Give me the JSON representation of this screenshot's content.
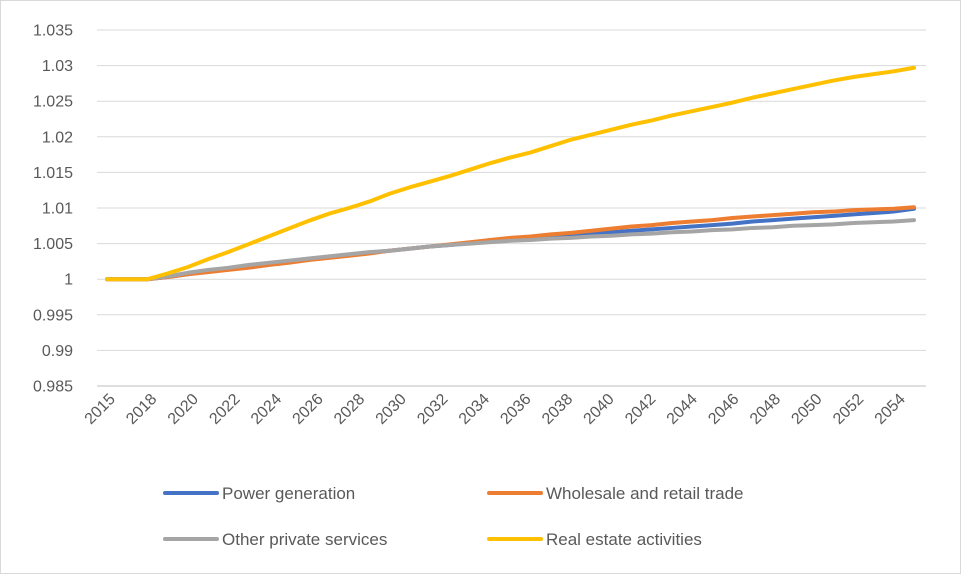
{
  "chart_data": {
    "type": "line",
    "title": "",
    "xlabel": "",
    "ylabel": "",
    "ylim": [
      0.985,
      1.035
    ],
    "yticks": [
      "0.985",
      "0.99",
      "0.995",
      "1",
      "1.005",
      "1.01",
      "1.015",
      "1.02",
      "1.025",
      "1.03",
      "1.035"
    ],
    "xlim": [
      2015,
      2055
    ],
    "xticks": [
      "2015",
      "2018",
      "2020",
      "2022",
      "2024",
      "2026",
      "2028",
      "2030",
      "2032",
      "2034",
      "2036",
      "2038",
      "2040",
      "2042",
      "2044",
      "2046",
      "2048",
      "2050",
      "2052",
      "2054"
    ],
    "grid": "horizontal",
    "legend_position": "bottom",
    "x": [
      2015,
      2016,
      2017,
      2018,
      2019,
      2020,
      2021,
      2022,
      2023,
      2024,
      2025,
      2026,
      2027,
      2028,
      2029,
      2030,
      2031,
      2032,
      2033,
      2034,
      2035,
      2036,
      2037,
      2038,
      2039,
      2040,
      2041,
      2042,
      2043,
      2044,
      2045,
      2046,
      2047,
      2048,
      2049,
      2050,
      2051,
      2052,
      2053,
      2054,
      2055
    ],
    "series": [
      {
        "name": "Power generation",
        "color": "#4472c4",
        "values": [
          1.0,
          1.0,
          1.0,
          1.0003,
          1.0007,
          1.0011,
          1.0014,
          1.0018,
          1.0021,
          1.0024,
          1.0028,
          1.0031,
          1.0034,
          1.0037,
          1.004,
          1.0043,
          1.0046,
          1.0048,
          1.0051,
          1.0054,
          1.0056,
          1.0058,
          1.006,
          1.0062,
          1.0064,
          1.0066,
          1.0068,
          1.007,
          1.0072,
          1.0074,
          1.0076,
          1.0078,
          1.0081,
          1.0083,
          1.0085,
          1.0087,
          1.0089,
          1.0091,
          1.0093,
          1.0095,
          1.0099
        ]
      },
      {
        "name": "Wholesale and retail trade",
        "color": "#ed7d31",
        "values": [
          1.0,
          1.0,
          1.0,
          1.0003,
          1.0007,
          1.001,
          1.0013,
          1.0016,
          1.002,
          1.0023,
          1.0027,
          1.003,
          1.0033,
          1.0036,
          1.004,
          1.0043,
          1.0046,
          1.0049,
          1.0052,
          1.0055,
          1.0058,
          1.006,
          1.0063,
          1.0065,
          1.0068,
          1.0071,
          1.0074,
          1.0076,
          1.0079,
          1.0081,
          1.0083,
          1.0086,
          1.0088,
          1.009,
          1.0092,
          1.0094,
          1.0095,
          1.0097,
          1.0098,
          1.0099,
          1.0101
        ]
      },
      {
        "name": "Other private services",
        "color": "#a5a5a5",
        "values": [
          1.0,
          1.0,
          1.0,
          1.0004,
          1.0009,
          1.0013,
          1.0016,
          1.002,
          1.0023,
          1.0026,
          1.0029,
          1.0032,
          1.0035,
          1.0038,
          1.004,
          1.0043,
          1.0046,
          1.0048,
          1.005,
          1.0052,
          1.0054,
          1.0055,
          1.0057,
          1.0058,
          1.006,
          1.0061,
          1.0063,
          1.0064,
          1.0066,
          1.0067,
          1.0069,
          1.007,
          1.0072,
          1.0073,
          1.0075,
          1.0076,
          1.0077,
          1.0079,
          1.008,
          1.0081,
          1.0083
        ]
      },
      {
        "name": "Real estate activities",
        "color": "#ffc000",
        "values": [
          1.0,
          1.0,
          1.0,
          1.0008,
          1.0017,
          1.0028,
          1.0038,
          1.0049,
          1.006,
          1.0071,
          1.0082,
          1.0092,
          1.01,
          1.0109,
          1.012,
          1.0129,
          1.0137,
          1.0145,
          1.0154,
          1.0163,
          1.0171,
          1.0178,
          1.0187,
          1.0196,
          1.0203,
          1.021,
          1.0217,
          1.0223,
          1.023,
          1.0236,
          1.0242,
          1.0248,
          1.0255,
          1.0261,
          1.0267,
          1.0273,
          1.0279,
          1.0284,
          1.0288,
          1.0292,
          1.0297
        ]
      }
    ]
  }
}
